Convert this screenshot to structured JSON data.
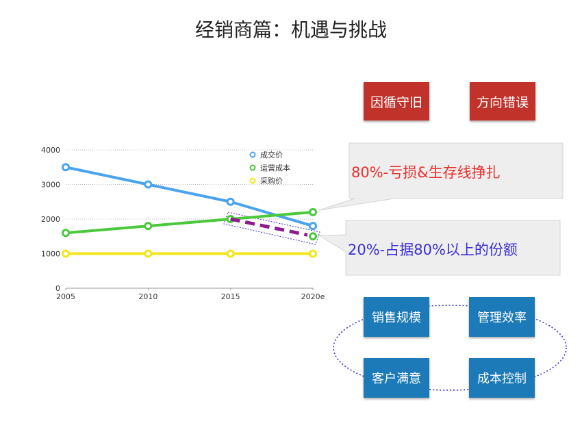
{
  "slide": {
    "title": "经销商篇：机遇与挑战"
  },
  "top_boxes": [
    "因循守旧",
    "方向错误"
  ],
  "callouts": {
    "loss": "80%-亏损&生存线挣扎",
    "share": "20%-占据80%以上的份额"
  },
  "cycle_boxes": [
    "销售规模",
    "管理效率",
    "客户满意",
    "成本控制"
  ],
  "colors": {
    "red_box": "#c0322a",
    "blue_box": "#1d7ab8",
    "loss_text": "#e8302a",
    "share_text": "#3a2fd6",
    "trend_dash": "#8e1a8e"
  },
  "chart_data": {
    "type": "line",
    "categories": [
      "2005",
      "2010",
      "2015",
      "2020e"
    ],
    "ylim": [
      0,
      4000
    ],
    "yticks": [
      0,
      1000,
      2000,
      3000,
      4000
    ],
    "grid": true,
    "legend": "top-right",
    "series": [
      {
        "name": "成交价",
        "color": "#4aa3ef",
        "values": [
          3500,
          3000,
          2500,
          1800
        ]
      },
      {
        "name": "运营成本",
        "color": "#4cc83c",
        "values": [
          1600,
          1800,
          2000,
          2200
        ]
      },
      {
        "name": "采购价",
        "color": "#f3e51a",
        "values": [
          1000,
          1000,
          1000,
          1000
        ]
      }
    ],
    "trend_segment": {
      "from": [
        "2015",
        2000
      ],
      "to": [
        "2020e",
        1500
      ]
    }
  }
}
